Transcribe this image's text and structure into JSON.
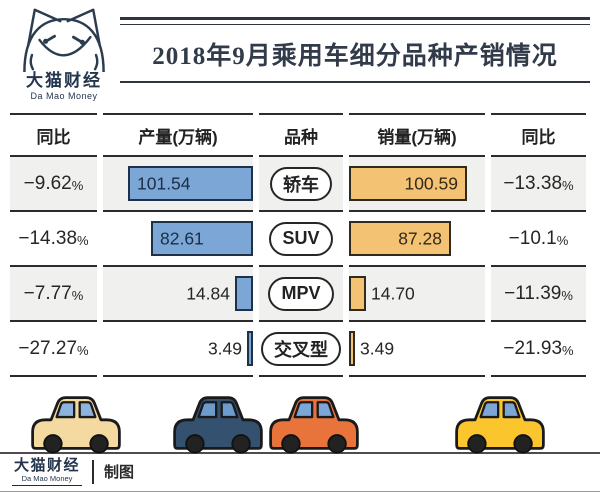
{
  "brand": {
    "name_cn": "大猫财经",
    "name_en": "Da Mao Money"
  },
  "title": "2018年9月乘用车细分品种产销情况",
  "table": {
    "headers": {
      "yoy_left": "同比",
      "production": "产量(万辆)",
      "category": "品种",
      "sales": "销量(万辆)",
      "yoy_right": "同比"
    },
    "percent_suffix": "%",
    "rows": [
      {
        "yoy_prod": "−9.62",
        "prod": "101.54",
        "prod_value": 101.54,
        "category": "轿车",
        "sales": "100.59",
        "sales_value": 100.59,
        "yoy_sales": "−13.38"
      },
      {
        "yoy_prod": "−14.38",
        "prod": "82.61",
        "prod_value": 82.61,
        "category": "SUV",
        "sales": "87.28",
        "sales_value": 87.28,
        "yoy_sales": "−10.1"
      },
      {
        "yoy_prod": "−7.77",
        "prod": "14.84",
        "prod_value": 14.84,
        "category": "MPV",
        "sales": "14.70",
        "sales_value": 14.7,
        "yoy_sales": "−11.39"
      },
      {
        "yoy_prod": "−27.27",
        "prod": "3.49",
        "prod_value": 3.49,
        "category": "交叉型",
        "sales": "3.49",
        "sales_value": 3.49,
        "yoy_sales": "−21.93"
      }
    ]
  },
  "footer": {
    "credit": "制图"
  },
  "colors": {
    "production_bar": "#7ba6d6",
    "production_border": "#1d3147",
    "sales_bar": "#f3c273",
    "sales_border": "#302a1d",
    "row_stripe": "#f0f0ef",
    "table_line": "#2b2b2b",
    "brand_navy": "#24364d"
  },
  "cars": [
    {
      "name": "cream-car",
      "body_color": "#f4d9a1",
      "window_color": "#8db3dd"
    },
    {
      "name": "navy-car",
      "body_color": "#34516f",
      "window_color": "#6d9bcb"
    },
    {
      "name": "orange-car",
      "body_color": "#e8743c",
      "window_color": "#7ba6d6"
    },
    {
      "name": "yellow-car",
      "body_color": "#fbc52d",
      "window_color": "#7ba6d6"
    }
  ],
  "chart_data": {
    "type": "bar",
    "subtype": "bidirectional-tornado-table",
    "title": "2018年9月乘用车细分品种产销情况",
    "categories": [
      "轿车",
      "SUV",
      "MPV",
      "交叉型"
    ],
    "series": [
      {
        "name": "产量(万辆)",
        "values": [
          101.54,
          82.61,
          14.84,
          3.49
        ],
        "yoy_percent": [
          "-9.62%",
          "-14.38%",
          "-7.77%",
          "-27.27%"
        ]
      },
      {
        "name": "销量(万辆)",
        "values": [
          100.59,
          87.28,
          14.7,
          3.49
        ],
        "yoy_percent": [
          "-13.38%",
          "-10.1%",
          "-11.39%",
          "-21.93%"
        ]
      }
    ],
    "value_unit": "万辆",
    "xlim": [
      0,
      105
    ],
    "legend_position": "column-headers",
    "grid": false
  }
}
